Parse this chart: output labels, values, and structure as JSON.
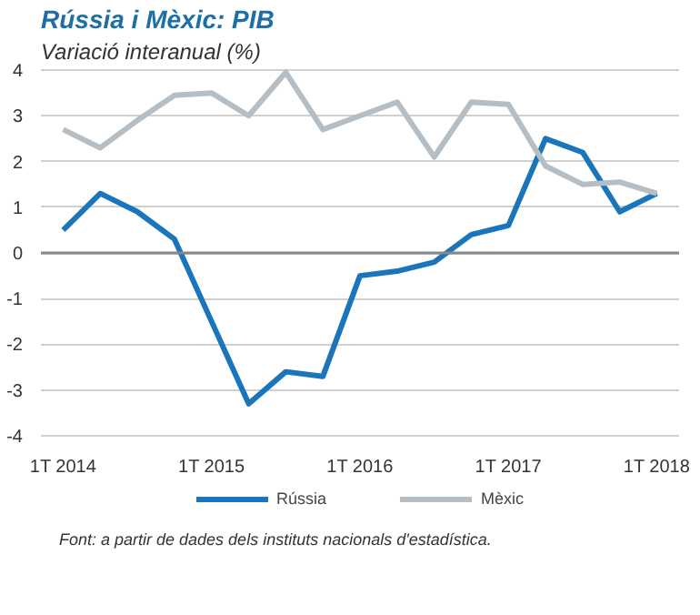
{
  "chart_data": {
    "type": "line",
    "title": "Rússia i Mèxic: PIB",
    "subtitle": "Variació interanual (%)",
    "categories": [
      "1T 2014",
      null,
      null,
      null,
      "1T 2015",
      null,
      null,
      null,
      "1T 2016",
      null,
      null,
      null,
      "1T 2017",
      null,
      null,
      null,
      "1T 2018"
    ],
    "series": [
      {
        "name": "Rússia",
        "color": "#1a75bb",
        "values": [
          0.5,
          1.3,
          0.9,
          0.3,
          -1.5,
          -3.3,
          -2.6,
          -2.7,
          -0.5,
          -0.4,
          -0.2,
          0.4,
          0.6,
          2.5,
          2.2,
          0.9,
          1.3
        ]
      },
      {
        "name": "Mèxic",
        "color": "#b4bec4",
        "values": [
          2.7,
          2.3,
          2.9,
          3.45,
          3.5,
          3.0,
          3.95,
          2.7,
          3.0,
          3.3,
          2.1,
          3.3,
          3.25,
          1.9,
          1.5,
          1.55,
          1.3
        ]
      }
    ],
    "ylim": [
      -4,
      4
    ],
    "yticks": [
      -4,
      -3,
      -2,
      -1,
      0,
      1,
      2,
      3,
      4
    ],
    "ref_lines": [
      {
        "axis": "y",
        "value": 0,
        "color": "#888888"
      }
    ],
    "grid": "y",
    "legend": "bottom",
    "line_style": "solid",
    "annotations": [
      "Font: a partir de dades dels instituts nacionals d'estadística."
    ]
  }
}
